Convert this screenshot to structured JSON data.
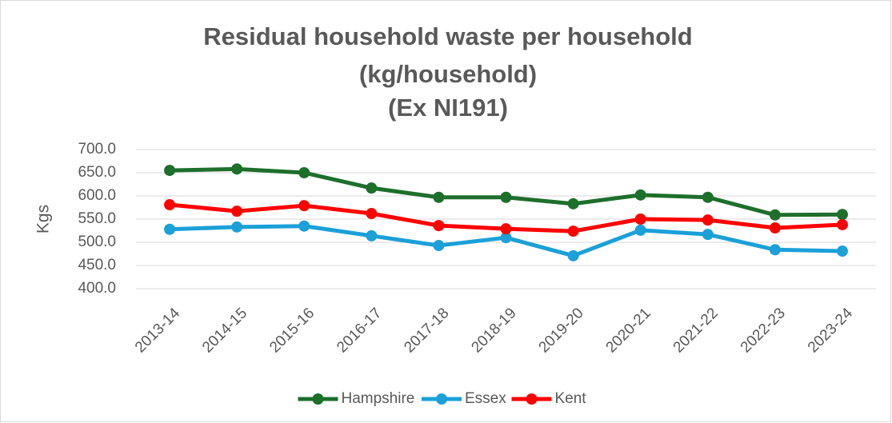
{
  "chart_data": {
    "type": "line",
    "title": [
      "Residual household waste per household",
      "(kg/household)",
      "(Ex NI191)"
    ],
    "y_label": "Kgs",
    "categories": [
      "2013-14",
      "2014-15",
      "2015-16",
      "2016-17",
      "2017-18",
      "2018-19",
      "2019-20",
      "2020-21",
      "2021-22",
      "2022-23",
      "2023-24"
    ],
    "series": [
      {
        "name": "Hampshire",
        "color": "#1e6e2c",
        "values": [
          655,
          658,
          650,
          617,
          597,
          597,
          583,
          602,
          597,
          559,
          560
        ]
      },
      {
        "name": "Essex",
        "color": "#1ca0d8",
        "values": [
          528,
          533,
          535,
          514,
          493,
          510,
          471,
          526,
          517,
          484,
          481
        ]
      },
      {
        "name": "Kent",
        "color": "#ff0000",
        "values": [
          581,
          567,
          579,
          562,
          536,
          529,
          524,
          550,
          548,
          531,
          538
        ]
      }
    ],
    "ylim": [
      400,
      700
    ],
    "yticks": [
      {
        "value": 400,
        "label": "400.0"
      },
      {
        "value": 450,
        "label": "450.0"
      },
      {
        "value": 500,
        "label": "500.0"
      },
      {
        "value": 550,
        "label": "550.0"
      },
      {
        "value": 600,
        "label": "600.0"
      },
      {
        "value": 650,
        "label": "650.0"
      },
      {
        "value": 700,
        "label": "700.0"
      }
    ],
    "grid": true,
    "legend": "bottom"
  }
}
